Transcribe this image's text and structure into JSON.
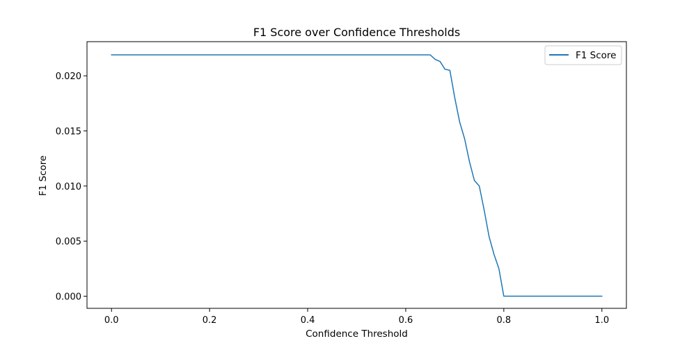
{
  "chart_data": {
    "type": "line",
    "title": "F1 Score over Confidence Thresholds",
    "xlabel": "Confidence Threshold",
    "ylabel": "F1 Score",
    "xlim": [
      -0.05,
      1.05
    ],
    "ylim": [
      -0.0011,
      0.0231
    ],
    "xticks": [
      0.0,
      0.2,
      0.4,
      0.6,
      0.8,
      1.0
    ],
    "xtick_labels": [
      "0.0",
      "0.2",
      "0.4",
      "0.6",
      "0.8",
      "1.0"
    ],
    "yticks": [
      0.0,
      0.005,
      0.01,
      0.015,
      0.02
    ],
    "ytick_labels": [
      "0.000",
      "0.005",
      "0.010",
      "0.015",
      "0.020"
    ],
    "grid": false,
    "legend": "upper right",
    "series": [
      {
        "name": "F1 Score",
        "color": "#1f77b4",
        "x": [
          0.0,
          0.05,
          0.1,
          0.15,
          0.2,
          0.25,
          0.3,
          0.35,
          0.4,
          0.45,
          0.5,
          0.55,
          0.6,
          0.65,
          0.66,
          0.67,
          0.68,
          0.69,
          0.7,
          0.71,
          0.72,
          0.73,
          0.74,
          0.75,
          0.76,
          0.77,
          0.78,
          0.79,
          0.8,
          0.85,
          0.9,
          0.95,
          1.0
        ],
        "y": [
          0.0219,
          0.0219,
          0.0219,
          0.0219,
          0.0219,
          0.0219,
          0.0219,
          0.0219,
          0.0219,
          0.0219,
          0.0219,
          0.0219,
          0.0219,
          0.0219,
          0.0215,
          0.0213,
          0.0206,
          0.0205,
          0.018,
          0.0158,
          0.0143,
          0.0122,
          0.0105,
          0.01,
          0.0078,
          0.0054,
          0.0038,
          0.0025,
          0.0,
          0.0,
          0.0,
          0.0,
          0.0
        ]
      }
    ]
  }
}
